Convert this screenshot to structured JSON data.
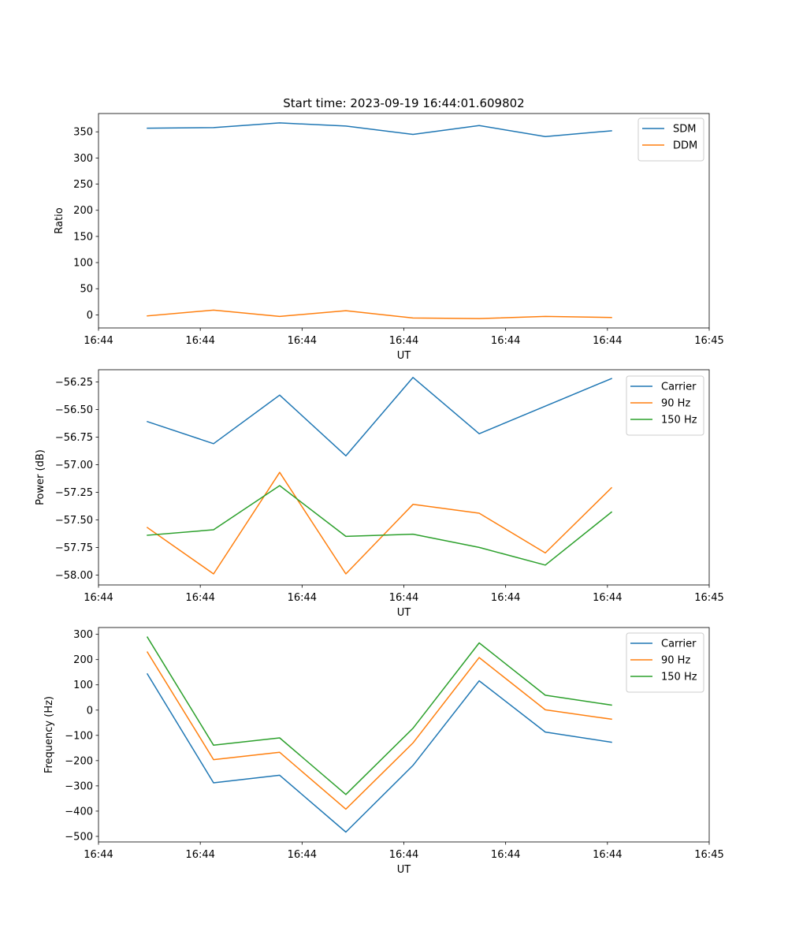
{
  "figure": {
    "title": "Start time: 2023-09-19 16:44:01.609802"
  },
  "chart_data": [
    {
      "type": "line",
      "title": "Start time: 2023-09-19 16:44:01.609802",
      "xlabel": "UT",
      "ylabel": "Ratio",
      "x_ticks": [
        "16:44",
        "16:44",
        "16:44",
        "16:44",
        "16:44",
        "16:44",
        "16:45"
      ],
      "xlim": [
        0,
        6
      ],
      "x": [
        0.48,
        1.13,
        1.78,
        2.43,
        3.09,
        3.74,
        4.39,
        5.04
      ],
      "ylim": [
        -25,
        385
      ],
      "y_ticks": [
        0,
        50,
        100,
        150,
        200,
        250,
        300,
        350
      ],
      "legend_position": "top-right",
      "grid": false,
      "series": [
        {
          "name": "SDM",
          "color": "#1f77b4",
          "values": [
            357,
            358,
            367,
            361,
            345,
            362,
            341,
            352
          ]
        },
        {
          "name": "DDM",
          "color": "#ff7f0e",
          "values": [
            -2,
            9,
            -3,
            8,
            -6,
            -7,
            -3,
            -5
          ]
        }
      ]
    },
    {
      "type": "line",
      "title": "",
      "xlabel": "UT",
      "ylabel": "Power (dB)",
      "x_ticks": [
        "16:44",
        "16:44",
        "16:44",
        "16:44",
        "16:44",
        "16:44",
        "16:45"
      ],
      "xlim": [
        0,
        6
      ],
      "x": [
        0.48,
        1.13,
        1.78,
        2.43,
        3.09,
        3.74,
        4.39,
        5.04
      ],
      "ylim": [
        -58.09,
        -56.14
      ],
      "y_ticks": [
        -58.0,
        -57.75,
        -57.5,
        -57.25,
        -57.0,
        -56.75,
        -56.5,
        -56.25
      ],
      "y_tick_labels": [
        "−58.00",
        "−57.75",
        "−57.50",
        "−57.25",
        "−57.00",
        "−56.75",
        "−56.50",
        "−56.25"
      ],
      "legend_position": "top-right",
      "grid": false,
      "series": [
        {
          "name": "Carrier",
          "color": "#1f77b4",
          "values": [
            -56.61,
            -56.81,
            -56.37,
            -56.92,
            -56.21,
            -56.72,
            -56.47,
            -56.22
          ]
        },
        {
          "name": "90 Hz",
          "color": "#ff7f0e",
          "values": [
            -57.57,
            -57.99,
            -57.07,
            -57.99,
            -57.36,
            -57.44,
            -57.8,
            -57.21
          ]
        },
        {
          "name": "150 Hz",
          "color": "#2ca02c",
          "values": [
            -57.64,
            -57.59,
            -57.19,
            -57.65,
            -57.63,
            -57.75,
            -57.91,
            -57.43
          ]
        }
      ]
    },
    {
      "type": "line",
      "title": "",
      "xlabel": "UT",
      "ylabel": "Frequency (Hz)",
      "x_ticks": [
        "16:44",
        "16:44",
        "16:44",
        "16:44",
        "16:44",
        "16:44",
        "16:45"
      ],
      "xlim": [
        0,
        6
      ],
      "x": [
        0.48,
        1.13,
        1.78,
        2.43,
        3.09,
        3.74,
        4.39,
        5.04
      ],
      "ylim": [
        -522,
        327
      ],
      "y_ticks": [
        -500,
        -400,
        -300,
        -200,
        -100,
        0,
        100,
        200,
        300
      ],
      "y_tick_labels": [
        "−500",
        "−400",
        "−300",
        "−200",
        "−100",
        "0",
        "100",
        "200",
        "300"
      ],
      "legend_position": "top-right",
      "grid": false,
      "series": [
        {
          "name": "Carrier",
          "color": "#1f77b4",
          "values": [
            143,
            -288,
            -258,
            -483,
            -219,
            116,
            -87,
            -127
          ]
        },
        {
          "name": "90 Hz",
          "color": "#ff7f0e",
          "values": [
            230,
            -196,
            -167,
            -392,
            -130,
            208,
            1,
            -36
          ]
        },
        {
          "name": "150 Hz",
          "color": "#2ca02c",
          "values": [
            289,
            -139,
            -110,
            -334,
            -72,
            266,
            59,
            20
          ]
        }
      ]
    }
  ]
}
